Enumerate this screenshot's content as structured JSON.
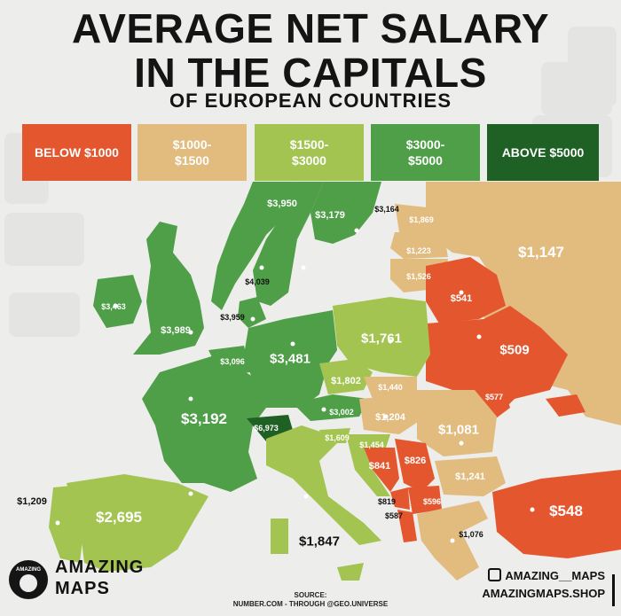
{
  "title": {
    "line1": "AVERAGE NET SALARY",
    "line2": "IN THE CAPITALS",
    "line3": "OF EUROPEAN COUNTRIES"
  },
  "legend": [
    {
      "label": "BELOW $1000",
      "color": "#e4572e"
    },
    {
      "label": "$1000-\n$1500",
      "color": "#e2bb7e"
    },
    {
      "label": "$1500-\n$3000",
      "color": "#a3c451"
    },
    {
      "label": "$3000-\n$5000",
      "color": "#4f9e48"
    },
    {
      "label": "ABOVE $5000",
      "color": "#1f6125"
    }
  ],
  "colors": {
    "low": "#e4572e",
    "mid": "#e2bb7e",
    "lightgreen": "#a3c451",
    "green": "#4f9e48",
    "darkgreen": "#1f6125",
    "background": "#ededeb"
  },
  "values": {
    "russia": "$1,147",
    "sweden": "$3,950",
    "finland": "$3,179",
    "estonia": "$3,164",
    "latvia": "$1,869",
    "lithuania": "$1,223",
    "lithuania2": "$1,526",
    "belarus": "$541",
    "norway": "$4,039",
    "ireland": "$3,463",
    "uk": "$3,989",
    "denmark": "$3,959",
    "netherlands": "$3,096",
    "germany": "$3,481",
    "poland": "$1,761",
    "ukraine": "$509",
    "czechia": "$1,802",
    "slovakia": "$1,440",
    "moldova": "$577",
    "austria": "$3,002",
    "hungary": "$1,204",
    "romania": "$1,081",
    "france": "$3,192",
    "switzerland": "$6,973",
    "slovenia": "$1,609",
    "croatia": "$1,454",
    "bosnia": "$841",
    "serbia": "$826",
    "bulgaria": "$1,241",
    "montenegro": "$819",
    "kosovo": "$596",
    "albania": "$587",
    "turkey": "$548",
    "greece": "$1,076",
    "portugal": "$1,209",
    "spain": "$2,695",
    "italy": "$1,847"
  },
  "brand": {
    "line1": "AMAZING",
    "line2": "MAPS",
    "logo_text": "AMAZING",
    "logo_sub": "MAPS"
  },
  "source": {
    "line1": "SOURCE:",
    "line2": "NUMBER.COM - THROUGH @GEO.UNIVERSE"
  },
  "social": {
    "instagram": "AMAZING__MAPS",
    "shop": "AMAZINGMAPS.SHOP"
  },
  "icons": {
    "instagram": "instagram-icon",
    "globe": "globe-icon"
  }
}
